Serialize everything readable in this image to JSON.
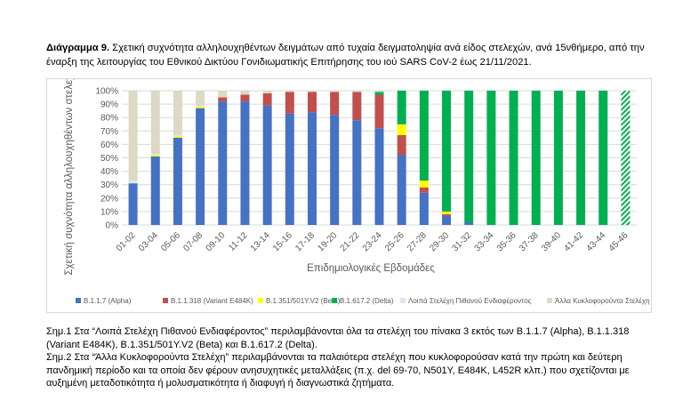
{
  "heading": {
    "label": "Διάγραμμα 9.",
    "text": " Σχετική συχνότητα αλληλουχηθέντων δειγμάτων από τυχαία δειγματοληψία ανά είδος στελεχών, ανά 15νθήμερο, από την έναρξη της λειτουργίας του Εθνικού Δικτύου Γονιδιωματικής Επιτήρησης του ιού SARS CoV-2 έως 21/11/2021."
  },
  "colors": {
    "alpha": "#4472c4",
    "variant_e484k": "#c0504d",
    "beta": "#ffff00",
    "delta": "#00b050",
    "other_voi": "#dce6f2",
    "other_circulating": "#ddd9c4",
    "grid": "#d9d9d9"
  },
  "chart_data": {
    "type": "bar",
    "stacked": true,
    "xlabel": "Επιδημιολογικές Εβδομάδες",
    "ylabel": "Σχετική συχνότητα αλληλουχηθέντων στελεχών (%)",
    "ylim": [
      0,
      100
    ],
    "yticks": [
      "0%",
      "10%",
      "20%",
      "30%",
      "40%",
      "50%",
      "60%",
      "70%",
      "80%",
      "90%",
      "100%"
    ],
    "grid": true,
    "legend_position": "bottom",
    "categories": [
      "01-02",
      "03-04",
      "05-06",
      "07-08",
      "09-10",
      "11-12",
      "13-14",
      "15-16",
      "17-18",
      "19-20",
      "21-22",
      "23-24",
      "25-26",
      "27-28",
      "29-30",
      "31-32",
      "33-34",
      "35-36",
      "37-38",
      "39-40",
      "41-42",
      "43-44",
      "45-46"
    ],
    "series": [
      {
        "name": "B.1.1.7 (Alpha)",
        "color_key": "alpha",
        "values": [
          31,
          51,
          65,
          87,
          92,
          92,
          89,
          83,
          84,
          82,
          78,
          72,
          52,
          24,
          7,
          2,
          0,
          0,
          0,
          0,
          0,
          0,
          0
        ]
      },
      {
        "name": "B.1.1.318 (Variant E484K)",
        "color_key": "variant_e484k",
        "values": [
          0,
          0,
          0,
          0,
          3,
          5,
          9,
          16,
          15,
          17,
          21,
          25,
          15,
          4,
          1,
          0,
          0,
          0,
          0,
          0,
          0,
          0,
          0
        ]
      },
      {
        "name": "B.1.351/501Y.V2 (Beta)",
        "color_key": "beta",
        "values": [
          0,
          1,
          1,
          1,
          0,
          0,
          0,
          0,
          0,
          0,
          0,
          0,
          8,
          5,
          2,
          0,
          0,
          0,
          0,
          0,
          0,
          0,
          0
        ]
      },
      {
        "name": "B.1.617.2 (Delta)",
        "color_key": "delta",
        "values": [
          0,
          0,
          0,
          0,
          0,
          0,
          0,
          0,
          0,
          0,
          0,
          2,
          25,
          67,
          90,
          98,
          100,
          100,
          100,
          100,
          100,
          100,
          100
        ]
      },
      {
        "name": "Λοιπά Στελέχη Πιθανού Ενδιαφέροντος",
        "color_key": "other_voi",
        "values": [
          2,
          1,
          1,
          1,
          0,
          0,
          0,
          0,
          0,
          0,
          0,
          0,
          0,
          0,
          0,
          0,
          0,
          0,
          0,
          0,
          0,
          0,
          0
        ]
      },
      {
        "name": "Άλλα Κυκλοφορούντα Στελέχη",
        "color_key": "other_circulating",
        "values": [
          67,
          47,
          33,
          11,
          5,
          3,
          2,
          1,
          1,
          1,
          1,
          1,
          0,
          0,
          0,
          0,
          0,
          0,
          0,
          0,
          0,
          0,
          0
        ]
      }
    ],
    "hatched_categories": [
      "45-46"
    ]
  },
  "notes": {
    "note1": "Σημ.1 Στα “Λοιπά Στελέχη Πιθανού Ενδιαφέροντος” περιλαμβάνονται όλα τα στελέχη του πίνακα 3 εκτός των B.1.1.7 (Alpha), B.1.1.318 (Variant E484K), B.1.351/501Y.V2 (Beta) και B.1.617.2 (Delta).",
    "note2": "Σημ.2 Στα “Άλλα Κυκλοφορούντα Στελέχη” περιλαμβάνονται τα παλαιότερα στελέχη που κυκλοφορούσαν κατά την πρώτη και δεύτερη πανδημική περίοδο και τα οποία δεν φέρουν ανησυχητικές μεταλλάξεις (π.χ. del 69-70, N501Y, E484K, L452R κλπ.) που σχετίζονται με αυξημένη μεταδοτικότητα ή μολυσματικότητα ή διαφυγή ή διαγνωστικά ζητήματα."
  }
}
